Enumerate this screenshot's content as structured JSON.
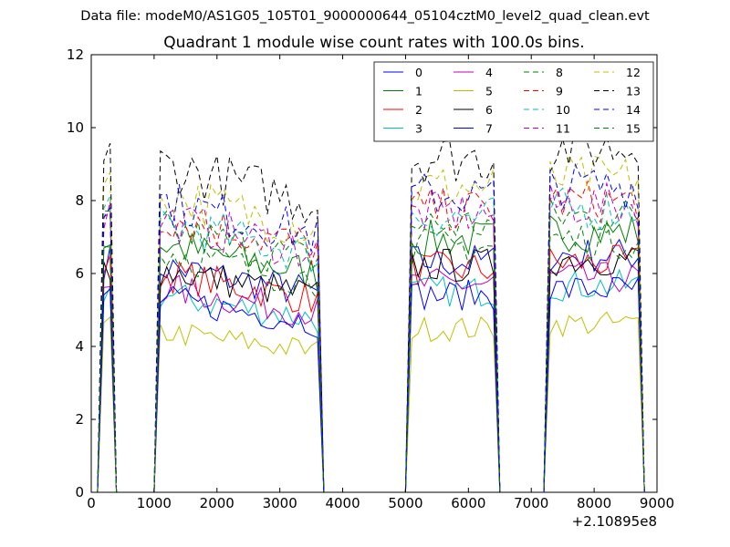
{
  "figure": {
    "suptitle": "Data file: modeM0/AS1G05_105T01_9000000644_05104cztM0_level2_quad_clean.evt",
    "title": "Quadrant 1 module wise count rates with 100.0s bins."
  },
  "chart_data": {
    "type": "line",
    "title": "Quadrant 1 module wise count rates with 100.0s bins.",
    "xlabel": "",
    "ylabel": "",
    "x_offset_label": "+2.10895e8",
    "xlim": [
      0,
      9000
    ],
    "ylim": [
      0,
      12
    ],
    "xticks": [
      0,
      1000,
      2000,
      3000,
      4000,
      5000,
      6000,
      7000,
      8000,
      9000
    ],
    "xtick_labels": [
      "0",
      "1000",
      "2000",
      "3000",
      "4000",
      "5000",
      "6000",
      "7000",
      "8000",
      "9000"
    ],
    "yticks": [
      0,
      2,
      4,
      6,
      8,
      10,
      12
    ],
    "ytick_labels": [
      "0",
      "2",
      "4",
      "6",
      "8",
      "10",
      "12"
    ],
    "grid": false,
    "legend_position": "upper-right",
    "segments": [
      {
        "start": 200,
        "end": 300,
        "step": 100
      },
      {
        "start": 1100,
        "end": 3600,
        "step": 100
      },
      {
        "start": 5100,
        "end": 6400,
        "step": 100
      },
      {
        "start": 7300,
        "end": 8700,
        "step": 100
      }
    ],
    "series": [
      {
        "name": "0",
        "color": "#0000ff",
        "dash": false,
        "level": 6.2
      },
      {
        "name": "1",
        "color": "#008000",
        "dash": false,
        "level": 6.8
      },
      {
        "name": "2",
        "color": "#ff0000",
        "dash": false,
        "level": 6.0
      },
      {
        "name": "3",
        "color": "#00bfbf",
        "dash": false,
        "level": 5.4
      },
      {
        "name": "4",
        "color": "#bf00bf",
        "dash": false,
        "level": 5.6
      },
      {
        "name": "5",
        "color": "#bfbf00",
        "dash": false,
        "level": 4.4
      },
      {
        "name": "6",
        "color": "#000000",
        "dash": false,
        "level": 6.1
      },
      {
        "name": "7",
        "color": "#0000ff",
        "dash": false,
        "level": 5.3
      },
      {
        "name": "8",
        "color": "#008000",
        "dash": true,
        "level": 7.2
      },
      {
        "name": "9",
        "color": "#ff0000",
        "dash": true,
        "level": 7.6
      },
      {
        "name": "10",
        "color": "#00bfbf",
        "dash": true,
        "level": 7.4
      },
      {
        "name": "11",
        "color": "#bf00bf",
        "dash": true,
        "level": 7.5
      },
      {
        "name": "12",
        "color": "#bfbf00",
        "dash": true,
        "level": 8.2
      },
      {
        "name": "13",
        "color": "#000000",
        "dash": true,
        "level": 9.0
      },
      {
        "name": "14",
        "color": "#0000ff",
        "dash": true,
        "level": 8.0
      },
      {
        "name": "15",
        "color": "#008000",
        "dash": true,
        "level": 6.6
      }
    ]
  }
}
